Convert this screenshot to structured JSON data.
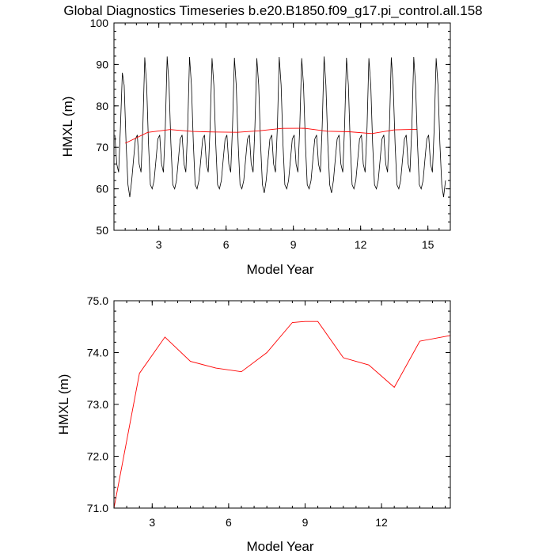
{
  "figure": {
    "title": "Global Diagnostics Timeseries b.e20.B1850.f09_g17.pi_control.all.158"
  },
  "colors": {
    "monthly": "#000000",
    "annual": "#ff0000"
  },
  "chart_data": [
    {
      "type": "line",
      "xlabel": "Model Year",
      "ylabel": "HMXL (m)",
      "xlim": [
        1,
        16
      ],
      "ylim": [
        50,
        100
      ],
      "xticks": [
        3,
        6,
        9,
        12,
        15
      ],
      "yticks": [
        50,
        60,
        70,
        80,
        90,
        100
      ],
      "xtick_labels": [
        "3",
        "6",
        "9",
        "12",
        "15"
      ],
      "ytick_labels": [
        "50",
        "60",
        "70",
        "80",
        "90",
        "100"
      ],
      "grid": false,
      "series": [
        {
          "kind": "monthly",
          "cycle": {
            "x_start": 1.04,
            "step": 0.0833,
            "months": 178,
            "jan": 73,
            "feb": 66,
            "mar": 64,
            "apr": 75,
            "may": 88,
            "jun": 85,
            "jul": 71,
            "aug": 61,
            "sep": 58,
            "oct": 62,
            "nov": 67,
            "dec": 72
          },
          "peaks": [
            88,
            91.7,
            91.9,
            91.8,
            91.5,
            91.6,
            91.5,
            91.8,
            91.5,
            91.9,
            91.6,
            91.5,
            91.7,
            91.8,
            91.5
          ],
          "troughs": [
            58,
            60,
            60,
            60,
            60,
            60,
            59,
            60,
            60,
            59,
            60,
            60,
            60,
            60,
            58
          ]
        },
        {
          "kind": "annual",
          "x": [
            1.5,
            2.5,
            3.5,
            4.5,
            5.5,
            6.5,
            7.5,
            8.5,
            9.5,
            10.5,
            11.5,
            12.5,
            13.5,
            14.5
          ],
          "values": [
            71.0,
            73.6,
            74.3,
            73.83,
            73.7,
            73.63,
            74.0,
            74.58,
            74.6,
            73.9,
            73.76,
            73.33,
            74.22,
            74.35
          ]
        }
      ]
    },
    {
      "type": "line",
      "xlabel": "Model Year",
      "ylabel": "HMXL (m)",
      "xlim": [
        1.5,
        14.7
      ],
      "ylim": [
        71.0,
        75.0
      ],
      "xticks": [
        3,
        6,
        9,
        12
      ],
      "yticks": [
        71.0,
        72.0,
        73.0,
        74.0,
        75.0
      ],
      "xtick_labels": [
        "3",
        "6",
        "9",
        "12"
      ],
      "ytick_labels": [
        "71.0",
        "72.0",
        "73.0",
        "74.0",
        "75.0"
      ],
      "grid": false,
      "series": [
        {
          "kind": "annual",
          "x": [
            1.5,
            2.5,
            3.5,
            4.5,
            5.5,
            6.5,
            7.5,
            8.5,
            9.0,
            9.5,
            10.5,
            11.5,
            12.5,
            13.5,
            14.7
          ],
          "values": [
            71.0,
            73.6,
            74.3,
            73.83,
            73.7,
            73.63,
            74.0,
            74.58,
            74.6,
            74.6,
            73.9,
            73.76,
            73.33,
            74.22,
            74.33
          ]
        }
      ]
    }
  ]
}
